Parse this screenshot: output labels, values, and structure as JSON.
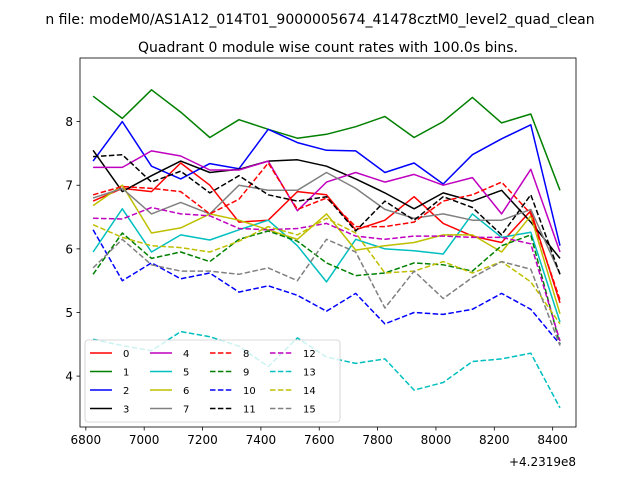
{
  "chart_data": {
    "type": "line",
    "figure_title": "n file: modeM0/AS1A12_014T01_9000005674_41478cztM0_level2_quad_clean",
    "title": "Quadrant 0 module wise count rates with 100.0s bins.",
    "xlabel": "",
    "ylabel": "",
    "x_offset_label": "+4.2319e8",
    "xlim": [
      6780,
      8480
    ],
    "ylim": [
      3.2,
      9.0
    ],
    "xticks": [
      6800,
      7000,
      7200,
      7400,
      7600,
      7800,
      8000,
      8200,
      8400
    ],
    "yticks": [
      4,
      5,
      6,
      7,
      8
    ],
    "grid": false,
    "legend_position": "lower-left",
    "legend_columns": 4,
    "x": [
      6825,
      6925,
      7025,
      7125,
      7225,
      7325,
      7425,
      7525,
      7625,
      7725,
      7825,
      7925,
      8025,
      8125,
      8225,
      8325,
      8425
    ],
    "series": [
      {
        "name": "0",
        "color": "#ff0000",
        "dash": "solid",
        "values": [
          6.75,
          6.95,
          6.9,
          7.35,
          7.0,
          6.42,
          6.45,
          6.9,
          6.85,
          6.3,
          6.45,
          6.82,
          6.4,
          6.2,
          6.1,
          6.6,
          5.15
        ]
      },
      {
        "name": "1",
        "color": "#008000",
        "dash": "solid",
        "values": [
          8.4,
          8.05,
          8.5,
          8.15,
          7.75,
          8.03,
          7.88,
          7.74,
          7.8,
          7.92,
          8.08,
          7.75,
          8.0,
          8.38,
          7.98,
          8.12,
          6.92
        ]
      },
      {
        "name": "2",
        "color": "#0000ff",
        "dash": "solid",
        "values": [
          7.38,
          8.0,
          7.3,
          7.1,
          7.34,
          7.26,
          7.88,
          7.67,
          7.55,
          7.54,
          7.2,
          7.35,
          7.02,
          7.48,
          7.73,
          7.95,
          6.05
        ]
      },
      {
        "name": "3",
        "color": "#000000",
        "dash": "solid",
        "values": [
          7.55,
          6.9,
          7.15,
          7.38,
          7.2,
          7.25,
          7.38,
          7.4,
          7.3,
          7.1,
          6.88,
          6.63,
          6.88,
          6.75,
          6.92,
          6.42,
          5.85
        ]
      },
      {
        "name": "4",
        "color": "#bf00bf",
        "dash": "solid",
        "values": [
          7.28,
          7.28,
          7.54,
          7.46,
          7.24,
          7.24,
          7.38,
          6.6,
          7.05,
          7.2,
          7.05,
          7.17,
          7.0,
          7.12,
          6.55,
          7.25,
          5.95
        ]
      },
      {
        "name": "5",
        "color": "#00bfbf",
        "dash": "solid",
        "values": [
          5.95,
          6.63,
          5.95,
          6.22,
          6.14,
          6.3,
          6.45,
          6.05,
          5.48,
          6.15,
          6.0,
          5.97,
          5.92,
          6.55,
          6.18,
          6.26,
          4.85
        ]
      },
      {
        "name": "6",
        "color": "#bfbf00",
        "dash": "solid",
        "values": [
          6.68,
          7.0,
          6.25,
          6.33,
          6.55,
          6.45,
          6.3,
          6.15,
          6.55,
          5.98,
          6.05,
          6.1,
          6.22,
          6.22,
          5.95,
          6.52,
          4.98
        ]
      },
      {
        "name": "7",
        "color": "#808080",
        "dash": "solid",
        "values": [
          6.8,
          6.95,
          6.55,
          6.73,
          6.55,
          7.0,
          6.92,
          6.92,
          7.2,
          6.95,
          6.62,
          6.48,
          6.55,
          6.45,
          6.45,
          6.62,
          5.6
        ]
      },
      {
        "name": "8",
        "color": "#ff0000",
        "dash": "dashed",
        "values": [
          6.85,
          6.98,
          6.95,
          6.9,
          6.55,
          6.78,
          7.35,
          6.62,
          6.8,
          6.35,
          6.35,
          6.42,
          6.75,
          6.85,
          7.05,
          6.55,
          5.2
        ]
      },
      {
        "name": "9",
        "color": "#008000",
        "dash": "dashed",
        "values": [
          5.6,
          6.25,
          5.85,
          5.95,
          5.8,
          6.15,
          6.28,
          6.12,
          5.78,
          5.58,
          5.62,
          5.78,
          5.75,
          5.65,
          6.05,
          6.22,
          4.5
        ]
      },
      {
        "name": "10",
        "color": "#0000ff",
        "dash": "dashed",
        "values": [
          6.3,
          5.5,
          5.78,
          5.53,
          5.62,
          5.32,
          5.42,
          5.27,
          5.02,
          5.3,
          4.82,
          5.0,
          4.97,
          5.05,
          5.3,
          5.05,
          4.5
        ]
      },
      {
        "name": "11",
        "color": "#000000",
        "dash": "dashed",
        "values": [
          7.45,
          7.48,
          7.05,
          7.22,
          6.88,
          7.15,
          6.85,
          6.75,
          6.82,
          6.28,
          6.75,
          6.45,
          6.82,
          6.65,
          6.22,
          6.85,
          5.6
        ]
      },
      {
        "name": "12",
        "color": "#bf00bf",
        "dash": "dashed",
        "values": [
          6.48,
          6.47,
          6.65,
          6.55,
          6.52,
          6.32,
          6.3,
          6.32,
          6.4,
          6.2,
          6.15,
          6.2,
          6.2,
          6.18,
          6.18,
          6.08,
          4.55
        ]
      },
      {
        "name": "13",
        "color": "#00bfbf",
        "dash": "dashed",
        "values": [
          4.58,
          4.48,
          4.4,
          4.7,
          4.62,
          4.47,
          4.15,
          4.6,
          4.3,
          4.2,
          4.27,
          3.78,
          3.9,
          4.23,
          4.27,
          4.36,
          3.5
        ]
      },
      {
        "name": "14",
        "color": "#bfbf00",
        "dash": "dashed",
        "values": [
          6.38,
          6.18,
          6.05,
          6.02,
          5.95,
          6.12,
          6.35,
          6.22,
          6.48,
          6.25,
          5.62,
          5.65,
          5.8,
          5.62,
          5.8,
          5.48,
          4.82
        ]
      },
      {
        "name": "15",
        "color": "#808080",
        "dash": "dashed",
        "values": [
          5.7,
          6.15,
          5.75,
          5.65,
          5.65,
          5.6,
          5.7,
          5.5,
          6.15,
          5.95,
          5.07,
          5.65,
          5.22,
          5.55,
          5.8,
          5.68,
          4.48
        ]
      }
    ]
  }
}
